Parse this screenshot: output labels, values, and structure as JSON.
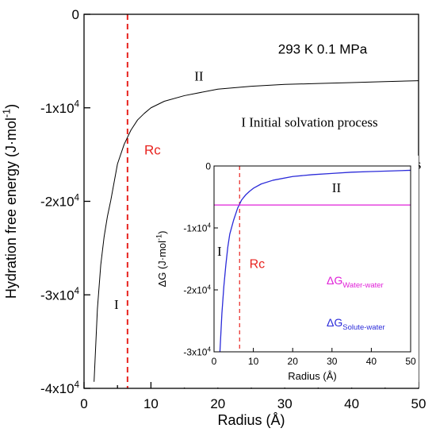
{
  "chart_data": [
    {
      "type": "line",
      "title": "",
      "xlabel": "Radius (Å)",
      "ylabel": "Hydration free energy (J·mol⁻¹)",
      "xlim": [
        0,
        50
      ],
      "ylim": [
        -40000,
        0
      ],
      "x_ticks": [
        {
          "value": 0,
          "label": "0"
        },
        {
          "value": 10,
          "label": "10"
        },
        {
          "value": 20,
          "label": "20"
        },
        {
          "value": 30,
          "label": "30"
        },
        {
          "value": 40,
          "label": "40"
        },
        {
          "value": 50,
          "label": "50"
        }
      ],
      "y_ticks": [
        {
          "value": 0,
          "label": "0",
          "exp": ""
        },
        {
          "value": -10000,
          "label": "-1x10",
          "exp": "4"
        },
        {
          "value": -20000,
          "label": "-2x10",
          "exp": "4"
        },
        {
          "value": -30000,
          "label": "-3x10",
          "exp": "4"
        },
        {
          "value": -40000,
          "label": "-4x10",
          "exp": "4"
        }
      ],
      "series": [
        {
          "color": "#000000",
          "x": [
            1.5,
            2,
            2.5,
            3,
            3.5,
            4,
            5,
            6,
            7,
            8,
            9,
            10,
            12,
            15,
            20,
            25,
            30,
            35,
            40,
            45,
            50
          ],
          "y": [
            -39300,
            -31500,
            -26800,
            -23800,
            -21600,
            -19900,
            -16000,
            -13900,
            -12400,
            -11300,
            -10600,
            -10000,
            -9300,
            -8700,
            -8000,
            -7700,
            -7500,
            -7400,
            -7300,
            -7200,
            -7100
          ]
        }
      ],
      "vlines": [
        {
          "x": 6.5,
          "color": "#e8231f",
          "style": "dashed"
        }
      ],
      "annotations": [
        {
          "text": "293 K  0.1 MPa",
          "font": "sans",
          "color": "#000000",
          "x": 29,
          "y": -4200
        },
        {
          "text": "II",
          "font": "serif",
          "color": "#000000",
          "x": 16.5,
          "y": -7100
        },
        {
          "text": "I  Initial solvation process",
          "font": "serif",
          "color": "#000000",
          "x": 23.5,
          "y": -12000
        },
        {
          "text": "II Hydrophobic solvation process",
          "font": "serif",
          "color": "#000000",
          "x": 23.5,
          "y": -16500
        },
        {
          "text": "Rc",
          "font": "sans",
          "color": "#e8231f",
          "x": 9,
          "y": -15000
        },
        {
          "text": "I",
          "font": "serif",
          "color": "#000000",
          "x": 4.5,
          "y": -31500
        }
      ]
    },
    {
      "type": "line",
      "title": "",
      "xlabel": "Radius (Å)",
      "ylabel": "ΔG (J·mol⁻¹)",
      "xlim": [
        0,
        50
      ],
      "ylim": [
        -30000,
        0
      ],
      "x_ticks": [
        {
          "value": 0,
          "label": "0"
        },
        {
          "value": 10,
          "label": "10"
        },
        {
          "value": 20,
          "label": "20"
        },
        {
          "value": 30,
          "label": "30"
        },
        {
          "value": 40,
          "label": "40"
        },
        {
          "value": 50,
          "label": "50"
        }
      ],
      "y_ticks": [
        {
          "value": 0,
          "label": "0",
          "exp": ""
        },
        {
          "value": -10000,
          "label": "-1x10",
          "exp": "4"
        },
        {
          "value": -20000,
          "label": "-2x10",
          "exp": "4"
        },
        {
          "value": -30000,
          "label": "-3x10",
          "exp": "4"
        }
      ],
      "series": [
        {
          "name": "ΔG Solute-water",
          "color": "#2b2bd9",
          "x": [
            1.5,
            2,
            2.5,
            3,
            3.5,
            4,
            5,
            6,
            7,
            8,
            9,
            10,
            12,
            15,
            20,
            25,
            30,
            35,
            40,
            45,
            50
          ],
          "y": [
            -30000,
            -23800,
            -19400,
            -16000,
            -13100,
            -11000,
            -8700,
            -6800,
            -5500,
            -4700,
            -4100,
            -3600,
            -2900,
            -2300,
            -1700,
            -1400,
            -1200,
            -1000,
            -900,
            -800,
            -700
          ]
        },
        {
          "name": "ΔG Water-water",
          "color": "#e020d8",
          "x": [
            0,
            50
          ],
          "y": [
            -6300,
            -6300
          ]
        }
      ],
      "vlines": [
        {
          "x": 6.5,
          "color": "#e8231f",
          "style": "dashed"
        }
      ],
      "annotations": [
        {
          "text": "II",
          "font": "serif",
          "color": "#000000",
          "x": 30,
          "y": -4200
        },
        {
          "text": "I",
          "font": "serif",
          "color": "#000000",
          "x": 0.8,
          "y": -14500
        },
        {
          "text": "Rc",
          "font": "sans",
          "color": "#e8231f",
          "x": 9,
          "y": -16500
        }
      ],
      "legend": [
        {
          "base": "ΔG",
          "sub": "Water-water",
          "color": "#e020d8"
        },
        {
          "base": "ΔG",
          "sub": "Solute-water",
          "color": "#2b2bd9"
        }
      ]
    }
  ]
}
